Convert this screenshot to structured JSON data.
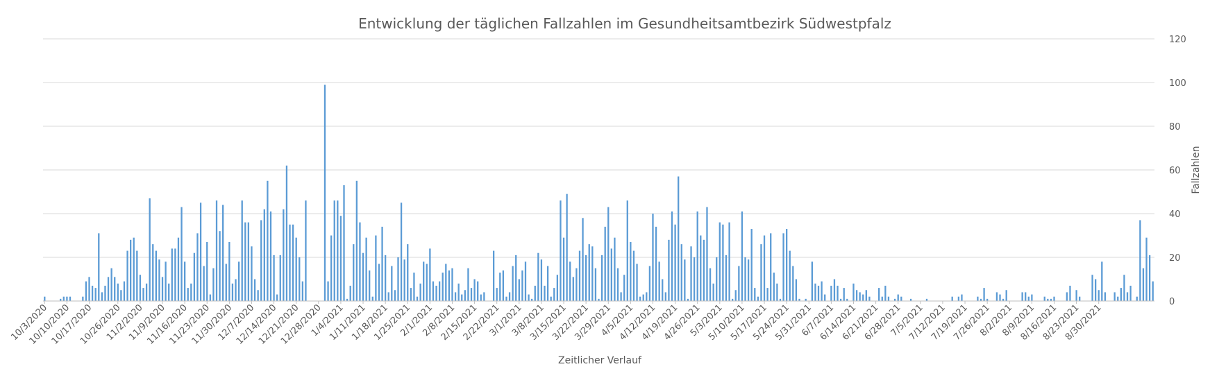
{
  "chart_data": {
    "type": "bar",
    "title": "Entwicklung der täglichen Fallzahlen im Gesundheitsamtbezirk Südwestpfalz",
    "xlabel": "Zeitlicher Verlauf",
    "ylabel": "Fallzahlen",
    "y_axis_side": "right",
    "ylim": [
      0,
      120
    ],
    "yticks": [
      0,
      20,
      40,
      60,
      80,
      100,
      120
    ],
    "grid": true,
    "legend": "none",
    "bar_color": "#5b9bd5",
    "x_start": "2020-10-03",
    "x_end": "2021-09-04",
    "xtick_labels": [
      "10/3/2020",
      "10/10/2020",
      "10/17/2020",
      "10/26/2020",
      "11/2/2020",
      "11/9/2020",
      "11/16/2020",
      "11/23/2020",
      "11/30/2020",
      "12/7/2020",
      "12/14/2020",
      "12/21/2020",
      "12/28/2020",
      "1/4/2021",
      "1/11/2021",
      "1/18/2021",
      "1/25/2021",
      "2/1/2021",
      "2/8/2021",
      "2/15/2021",
      "2/22/2021",
      "3/1/2021",
      "3/8/2021",
      "3/15/2021",
      "3/22/2021",
      "3/29/2021",
      "4/5/2021",
      "4/12/2021",
      "4/19/2021",
      "4/26/2021",
      "5/3/2021",
      "5/10/2021",
      "5/17/2021",
      "5/24/2021",
      "5/31/2021",
      "6/7/2021",
      "6/14/2021",
      "6/21/2021",
      "6/28/2021",
      "7/5/2021",
      "7/12/2021",
      "7/19/2021",
      "7/26/2021",
      "8/2/2021",
      "8/9/2021",
      "8/16/2021",
      "8/23/2021",
      "8/30/2021"
    ],
    "values": [
      2,
      0,
      0,
      0,
      0,
      1,
      2,
      2,
      2,
      0,
      0,
      0,
      2,
      9,
      11,
      7,
      6,
      31,
      4,
      7,
      11,
      15,
      11,
      8,
      5,
      9,
      23,
      28,
      29,
      23,
      12,
      6,
      8,
      47,
      26,
      23,
      19,
      11,
      18,
      8,
      24,
      24,
      29,
      43,
      18,
      6,
      8,
      22,
      31,
      45,
      16,
      27,
      3,
      15,
      46,
      32,
      44,
      17,
      27,
      8,
      10,
      18,
      46,
      36,
      36,
      25,
      10,
      5,
      37,
      42,
      55,
      41,
      21,
      3,
      21,
      42,
      62,
      35,
      35,
      29,
      20,
      9,
      46,
      0,
      0,
      0,
      0,
      0,
      99,
      9,
      30,
      46,
      46,
      39,
      53,
      1,
      7,
      26,
      55,
      36,
      22,
      29,
      14,
      2,
      30,
      17,
      34,
      21,
      4,
      16,
      5,
      20,
      45,
      19,
      26,
      6,
      13,
      2,
      8,
      18,
      17,
      24,
      9,
      7,
      9,
      13,
      17,
      14,
      15,
      4,
      8,
      3,
      5,
      15,
      6,
      10,
      9,
      3,
      4,
      0,
      0,
      23,
      6,
      13,
      14,
      2,
      4,
      16,
      21,
      10,
      14,
      18,
      3,
      1,
      7,
      22,
      19,
      7,
      16,
      2,
      6,
      12,
      46,
      29,
      49,
      18,
      11,
      15,
      23,
      38,
      21,
      26,
      25,
      15,
      1,
      21,
      34,
      43,
      24,
      29,
      15,
      4,
      12,
      46,
      27,
      23,
      17,
      2,
      3,
      4,
      16,
      40,
      34,
      18,
      10,
      4,
      28,
      41,
      35,
      57,
      26,
      19,
      1,
      25,
      20,
      41,
      30,
      28,
      43,
      15,
      8,
      20,
      36,
      35,
      21,
      36,
      1,
      5,
      16,
      41,
      20,
      19,
      33,
      6,
      2,
      26,
      30,
      6,
      31,
      13,
      8,
      1,
      31,
      33,
      23,
      16,
      10,
      1,
      0,
      1,
      0,
      18,
      8,
      7,
      9,
      3,
      0,
      7,
      10,
      7,
      1,
      6,
      1,
      0,
      8,
      5,
      4,
      3,
      5,
      2,
      0,
      0,
      6,
      2,
      7,
      2,
      0,
      1,
      3,
      2,
      0,
      0,
      1,
      0,
      0,
      0,
      0,
      1,
      0,
      0,
      0,
      0,
      0,
      0,
      0,
      2,
      0,
      2,
      3,
      0,
      0,
      0,
      0,
      2,
      1,
      6,
      1,
      0,
      0,
      4,
      3,
      1,
      5,
      0,
      0,
      0,
      0,
      4,
      4,
      2,
      3,
      0,
      0,
      0,
      2,
      1,
      1,
      2,
      0,
      0,
      0,
      4,
      7,
      0,
      5,
      2,
      0,
      0,
      0,
      12,
      10,
      5,
      18,
      4,
      0,
      0,
      4,
      2,
      6,
      12,
      4,
      7,
      0,
      2,
      37,
      15,
      29,
      21,
      9
    ]
  }
}
